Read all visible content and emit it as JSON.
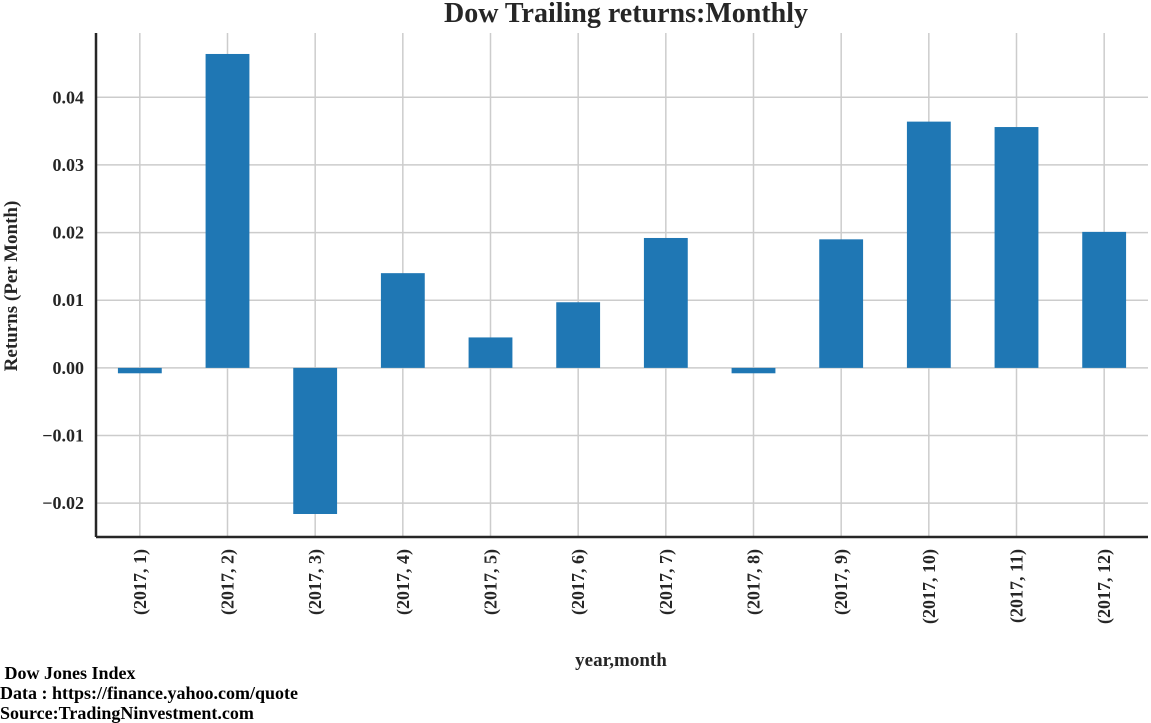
{
  "chart_data": {
    "type": "bar",
    "title": "Dow Trailing returns:Monthly",
    "xlabel": "year,month",
    "ylabel": "Returns (Per Month)",
    "categories": [
      "(2017, 1)",
      "(2017, 2)",
      "(2017, 3)",
      "(2017, 4)",
      "(2017, 5)",
      "(2017, 6)",
      "(2017, 7)",
      "(2017, 8)",
      "(2017, 9)",
      "(2017, 10)",
      "(2017, 11)",
      "(2017, 12)"
    ],
    "values": [
      -0.0008,
      0.0464,
      -0.0216,
      0.014,
      0.0045,
      0.0097,
      0.0192,
      -0.0008,
      0.019,
      0.0364,
      0.0356,
      0.0201
    ],
    "ylim": [
      -0.025,
      0.0495
    ],
    "yticks": [
      -0.02,
      -0.01,
      0.0,
      0.01,
      0.02,
      0.03,
      0.04
    ],
    "ytick_labels": [
      "−0.02",
      "−0.01",
      "0.00",
      "0.01",
      "0.02",
      "0.03",
      "0.04"
    ],
    "grid": true,
    "bar_color": "#1f77b4",
    "grid_color": "#cccccc",
    "axis_color": "#262626"
  },
  "notes": {
    "line1": " Dow Jones Index",
    "line2": "Data : https://finance.yahoo.com/quote",
    "line3": "Source:TradingNinvestment.com"
  }
}
